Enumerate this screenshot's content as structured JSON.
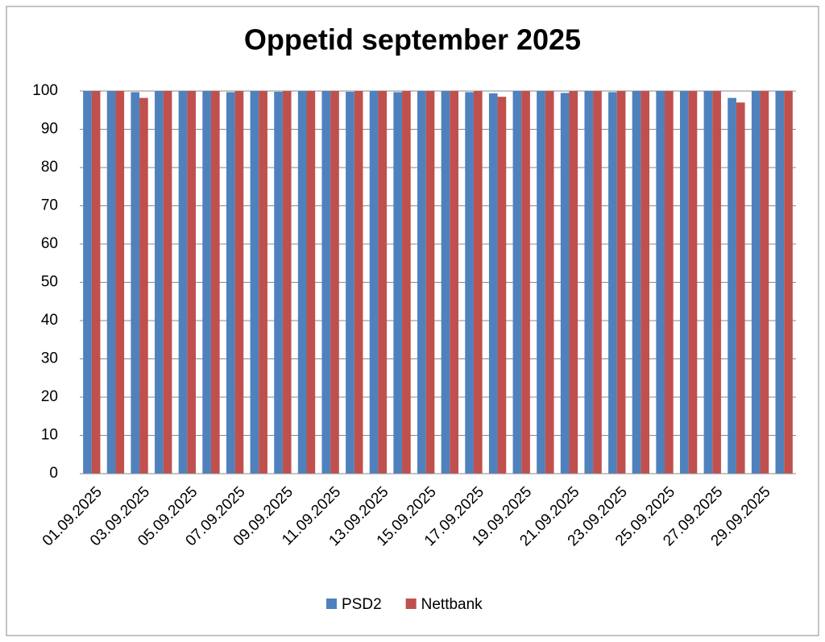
{
  "chart_data": {
    "type": "bar",
    "title": "Oppetid september 2025",
    "categories": [
      "01.09.2025",
      null,
      "03.09.2025",
      null,
      "05.09.2025",
      null,
      "07.09.2025",
      null,
      "09.09.2025",
      null,
      "11.09.2025",
      null,
      "13.09.2025",
      null,
      "15.09.2025",
      null,
      "17.09.2025",
      null,
      "19.09.2025",
      null,
      "21.09.2025",
      null,
      "23.09.2025",
      null,
      "25.09.2025",
      null,
      "27.09.2025",
      null,
      "29.09.2025",
      null
    ],
    "series": [
      {
        "name": "PSD2",
        "color": "#4f81bd",
        "values": [
          100,
          100,
          99.7,
          100,
          100,
          100,
          99.7,
          100,
          99.8,
          100,
          100,
          99.8,
          100,
          99.7,
          100,
          100,
          99.7,
          99.4,
          100,
          100,
          99.5,
          100,
          99.7,
          100,
          100,
          100,
          100,
          98.2,
          100,
          100
        ]
      },
      {
        "name": "Nettbank",
        "color": "#c0504d",
        "values": [
          100,
          100,
          98.2,
          100,
          100,
          100,
          100,
          100,
          100,
          100,
          100,
          100,
          100,
          100,
          100,
          100,
          100,
          98.5,
          100,
          100,
          100,
          100,
          100,
          100,
          100,
          100,
          100,
          97,
          100,
          100
        ]
      }
    ],
    "ylim": [
      0,
      100
    ],
    "yticks": [
      0,
      10,
      20,
      30,
      40,
      50,
      60,
      70,
      80,
      90,
      100
    ],
    "grid": true,
    "legend": "bottom"
  }
}
